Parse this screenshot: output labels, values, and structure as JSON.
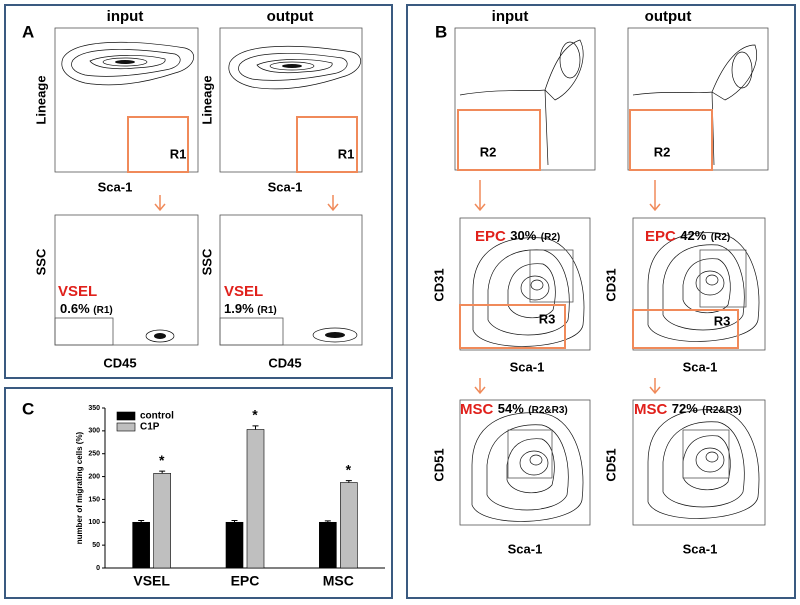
{
  "panel_a": {
    "label": "A",
    "input": "input",
    "output": "output",
    "top_y": "Lineage",
    "top_x": "Sca-1",
    "gate": "R1",
    "bottom_y": "SSC",
    "bottom_x": "CD45",
    "population": "VSEL",
    "input_pct": "0.6%",
    "output_pct": "1.9%",
    "gate_ref": "(R1)"
  },
  "panel_b": {
    "label": "B",
    "input": "input",
    "output": "output",
    "top_gate": "R2",
    "mid_y": "CD31",
    "mid_x": "Sca-1",
    "mid_gate": "R3",
    "epc": "EPC",
    "epc_input_pct": "30%",
    "epc_output_pct": "42%",
    "epc_ref": "(R2)",
    "bottom_y": "CD51",
    "bottom_x": "Sca-1",
    "msc": "MSC",
    "msc_input_pct": "54%",
    "msc_output_pct": "72%",
    "msc_ref": "(R2&R3)"
  },
  "chart_data": {
    "type": "bar",
    "label": "C",
    "ylabel": "number of migrating cells (%)",
    "categories": [
      "VSEL",
      "EPC",
      "MSC"
    ],
    "series": [
      {
        "name": "control",
        "color": "#000000",
        "values": [
          100,
          100,
          100
        ],
        "errors": [
          4,
          4,
          3
        ]
      },
      {
        "name": "C1P",
        "color": "#bfbfbf",
        "values": [
          207,
          303,
          187
        ],
        "errors": [
          5,
          8,
          4
        ]
      }
    ],
    "annotations": [
      "*",
      "*",
      "*"
    ],
    "ylim": [
      0,
      350
    ],
    "yticks": [
      0,
      50,
      100,
      150,
      200,
      250,
      300,
      350
    ]
  }
}
